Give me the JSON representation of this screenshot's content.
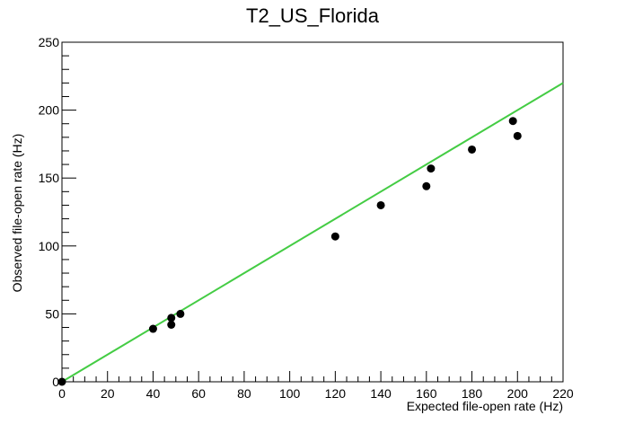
{
  "chart_data": {
    "type": "scatter",
    "title": "T2_US_Florida",
    "xlabel": "Expected file-open rate (Hz)",
    "ylabel": "Observed file-open rate (Hz)",
    "xlim": [
      0,
      220
    ],
    "ylim": [
      0,
      250
    ],
    "xticks": [
      0,
      20,
      40,
      60,
      80,
      100,
      120,
      140,
      160,
      180,
      200,
      220
    ],
    "yticks": [
      0,
      50,
      100,
      150,
      200,
      250
    ],
    "grid": false,
    "series": [
      {
        "marker_color": "#000000",
        "x": [
          0,
          40,
          48,
          48,
          52,
          120,
          140,
          160,
          162,
          180,
          198,
          200
        ],
        "y": [
          0,
          39,
          42,
          47,
          50,
          107,
          130,
          144,
          157,
          171,
          192,
          181
        ]
      }
    ],
    "reference_line": {
      "color": "#44cc44",
      "x": [
        0,
        220
      ],
      "y": [
        0,
        220
      ]
    }
  }
}
